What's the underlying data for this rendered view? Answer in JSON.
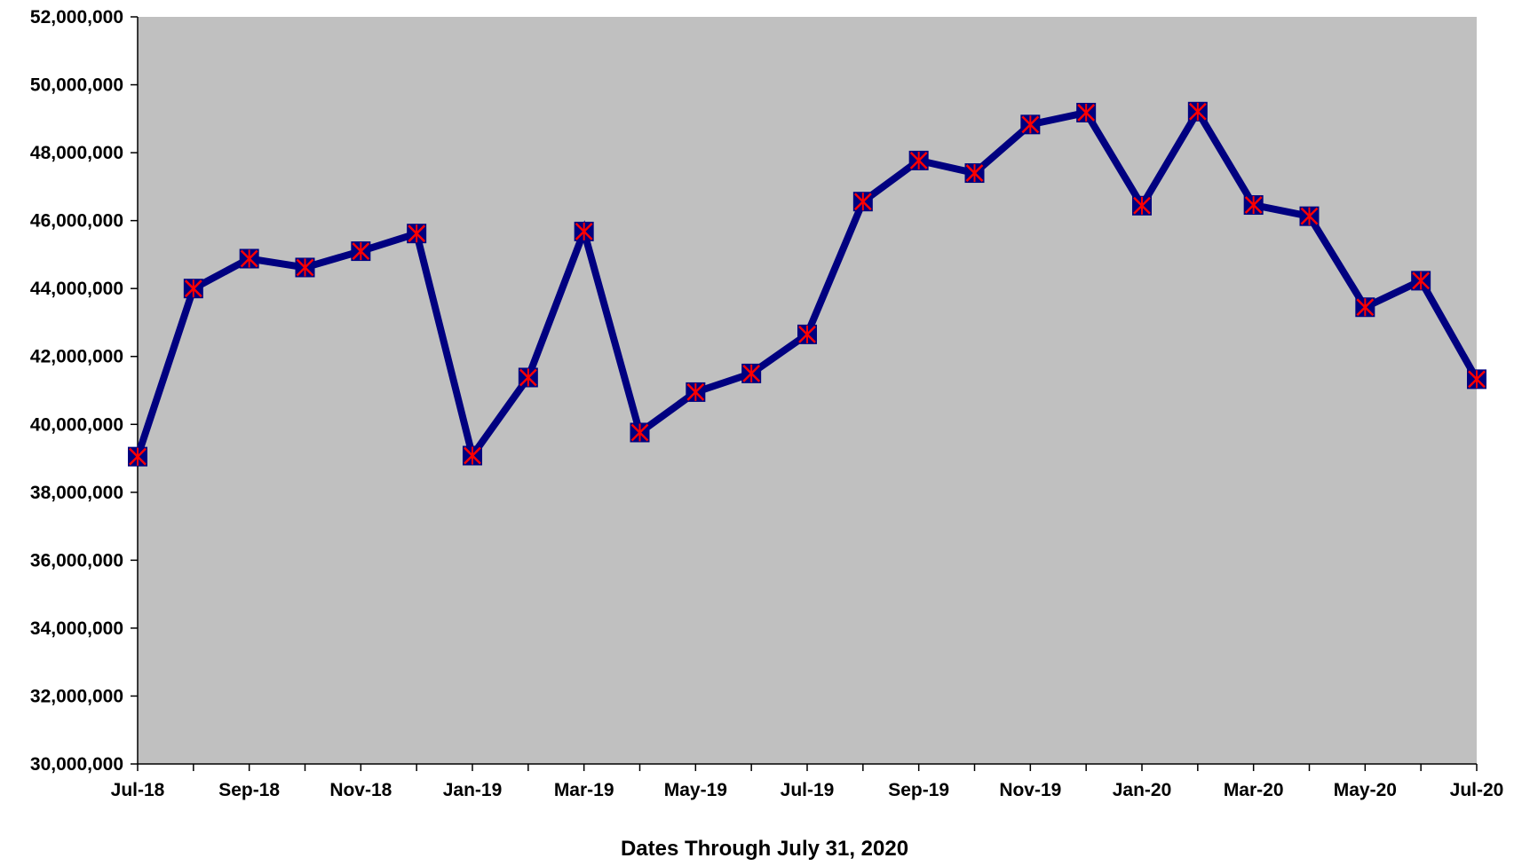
{
  "chart_data": {
    "type": "line",
    "title": "",
    "xlabel": "Dates Through July 31, 2020",
    "ylabel": "",
    "ylim": [
      30000000,
      52000000
    ],
    "y_ticks": [
      30000000,
      32000000,
      34000000,
      36000000,
      38000000,
      40000000,
      42000000,
      44000000,
      46000000,
      48000000,
      50000000,
      52000000
    ],
    "y_tick_labels": [
      "30,000,000",
      "32,000,000",
      "34,000,000",
      "36,000,000",
      "38,000,000",
      "40,000,000",
      "42,000,000",
      "44,000,000",
      "46,000,000",
      "48,000,000",
      "50,000,000",
      "52,000,000"
    ],
    "categories": [
      "Jul-18",
      "Aug-18",
      "Sep-18",
      "Oct-18",
      "Nov-18",
      "Dec-18",
      "Jan-19",
      "Feb-19",
      "Mar-19",
      "Apr-19",
      "May-19",
      "Jun-19",
      "Jul-19",
      "Aug-19",
      "Sep-19",
      "Oct-19",
      "Nov-19",
      "Dec-19",
      "Jan-20",
      "Feb-20",
      "Mar-20",
      "Apr-20",
      "May-20",
      "Jun-20",
      "Jul-20"
    ],
    "x_tick_labels": [
      "Jul-18",
      "",
      "Sep-18",
      "",
      "Nov-18",
      "",
      "Jan-19",
      "",
      "Mar-19",
      "",
      "May-19",
      "",
      "Jul-19",
      "",
      "Sep-19",
      "",
      "Nov-19",
      "",
      "Jan-20",
      "",
      "Mar-20",
      "",
      "May-20",
      "",
      "Jul-20"
    ],
    "series": [
      {
        "values": [
          39050000,
          44000000,
          44880000,
          44620000,
          45100000,
          45620000,
          39080000,
          41380000,
          45680000,
          39760000,
          40950000,
          41500000,
          42650000,
          46560000,
          47770000,
          47400000,
          48830000,
          49180000,
          46440000,
          49210000,
          46460000,
          46130000,
          43450000,
          44230000,
          41330000
        ]
      }
    ],
    "grid": false,
    "legend": "none",
    "colors": {
      "plot_background": "#c0c0c0",
      "line": "#000080",
      "marker_fill": "#000080",
      "marker_cross": "#ff0000",
      "axis": "#000000"
    }
  }
}
